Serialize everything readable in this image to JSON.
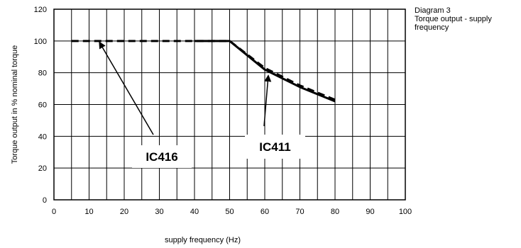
{
  "caption": {
    "lines": [
      "Diagram 3",
      "Torque output - supply",
      "frequency"
    ]
  },
  "chart_data": {
    "type": "line",
    "title": "",
    "xlabel": "supply frequency (Hz)",
    "ylabel": "Torque output in % nominal torque",
    "xlim": [
      0,
      100
    ],
    "ylim": [
      0,
      120
    ],
    "x_ticks": [
      0,
      10,
      20,
      30,
      40,
      50,
      60,
      70,
      80,
      90,
      100
    ],
    "y_ticks": [
      0,
      20,
      40,
      60,
      80,
      100,
      120
    ],
    "grid": "major + minor vertical every 5 Hz",
    "series": [
      {
        "name": "IC416",
        "style": "dashed",
        "x": [
          5,
          50,
          60,
          70,
          80
        ],
        "y": [
          100,
          100,
          83,
          72,
          63
        ]
      },
      {
        "name": "IC411",
        "style": "solid",
        "x": [
          40,
          50,
          60,
          70,
          80
        ],
        "y": [
          100,
          100,
          82,
          71,
          62
        ]
      }
    ],
    "annotations": [
      {
        "label": "IC416",
        "arrow_to": [
          13,
          99
        ]
      },
      {
        "label": "IC411",
        "arrow_to": [
          61,
          78
        ]
      }
    ]
  }
}
